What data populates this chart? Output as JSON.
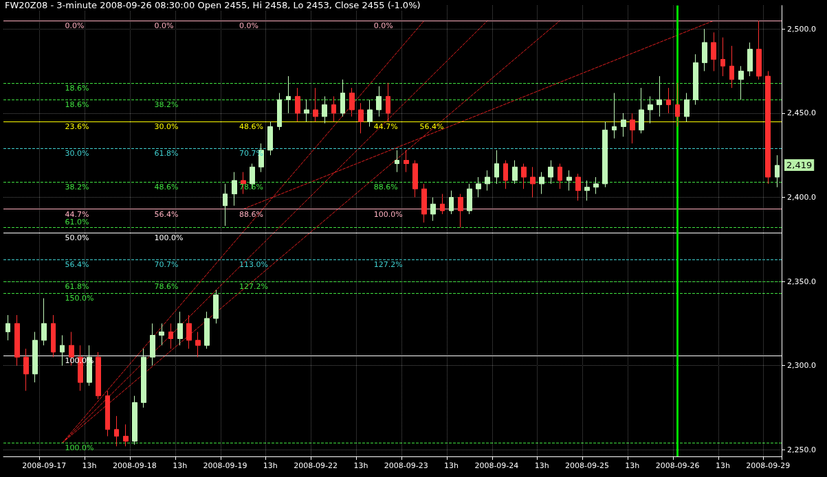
{
  "chart_data": {
    "type": "candlestick",
    "title": "FW20Z08 - 3-minute 2008-09-26 08:30:00 Open 2455, Hi 2458, Lo 2453, Close 2455 (-1.0%)",
    "categories": [
      null,
      null,
      null,
      null,
      "2008-09-17",
      null,
      null,
      null,
      null,
      "13h",
      null,
      null,
      null,
      null,
      "2008-09-18",
      null,
      null,
      null,
      null,
      "13h",
      null,
      null,
      null,
      null,
      "2008-09-19",
      null,
      null,
      null,
      null,
      "13h",
      null,
      null,
      null,
      null,
      "2008-09-22",
      null,
      null,
      null,
      null,
      "13h",
      null,
      null,
      null,
      null,
      "2008-09-23",
      null,
      null,
      null,
      null,
      "13h",
      null,
      null,
      null,
      null,
      "2008-09-24",
      null,
      null,
      null,
      null,
      "13h",
      null,
      null,
      null,
      null,
      "2008-09-25",
      null,
      null,
      null,
      null,
      "13h",
      null,
      null,
      null,
      null,
      "2008-09-26",
      null,
      null,
      null,
      null,
      "13h",
      null,
      null,
      null,
      null,
      "2008-09-29",
      null
    ],
    "ohlc": [
      [
        2320,
        2330,
        2315,
        2325
      ],
      [
        2325,
        2330,
        2300,
        2305
      ],
      [
        2305,
        2310,
        2285,
        2295
      ],
      [
        2295,
        2320,
        2290,
        2315
      ],
      [
        2315,
        2340,
        2312,
        2325
      ],
      [
        2325,
        2330,
        2305,
        2308
      ],
      [
        2308,
        2318,
        2300,
        2312
      ],
      [
        2312,
        2320,
        2300,
        2305
      ],
      [
        2305,
        2312,
        2285,
        2290
      ],
      [
        2290,
        2312,
        2288,
        2305
      ],
      [
        2305,
        2308,
        2280,
        2282
      ],
      [
        2282,
        2285,
        2258,
        2262
      ],
      [
        2262,
        2270,
        2252,
        2258
      ],
      [
        2258,
        2265,
        2252,
        2255
      ],
      [
        2255,
        2282,
        2253,
        2278
      ],
      [
        2278,
        2310,
        2275,
        2305
      ],
      [
        2305,
        2325,
        2300,
        2318
      ],
      [
        2318,
        2325,
        2312,
        2320
      ],
      [
        2320,
        2325,
        2310,
        2316
      ],
      [
        2316,
        2332,
        2312,
        2325
      ],
      [
        2325,
        2330,
        2310,
        2315
      ],
      [
        2315,
        2320,
        2305,
        2312
      ],
      [
        2312,
        2332,
        2310,
        2328
      ],
      [
        2328,
        2345,
        2325,
        2342
      ],
      [
        2395,
        2408,
        2383,
        2402
      ],
      [
        2402,
        2415,
        2395,
        2410
      ],
      [
        2410,
        2415,
        2402,
        2408
      ],
      [
        2408,
        2420,
        2405,
        2418
      ],
      [
        2418,
        2432,
        2415,
        2428
      ],
      [
        2428,
        2445,
        2425,
        2442
      ],
      [
        2442,
        2462,
        2440,
        2458
      ],
      [
        2458,
        2472,
        2450,
        2460
      ],
      [
        2460,
        2465,
        2445,
        2450
      ],
      [
        2450,
        2458,
        2445,
        2452
      ],
      [
        2452,
        2465,
        2445,
        2448
      ],
      [
        2448,
        2460,
        2444,
        2455
      ],
      [
        2455,
        2460,
        2445,
        2450
      ],
      [
        2450,
        2470,
        2448,
        2462
      ],
      [
        2462,
        2465,
        2448,
        2452
      ],
      [
        2452,
        2456,
        2438,
        2445
      ],
      [
        2445,
        2458,
        2442,
        2452
      ],
      [
        2452,
        2466,
        2448,
        2460
      ],
      [
        2460,
        2468,
        2445,
        2450
      ],
      [
        2420,
        2428,
        2415,
        2422
      ],
      [
        2422,
        2428,
        2415,
        2420
      ],
      [
        2420,
        2422,
        2400,
        2405
      ],
      [
        2405,
        2408,
        2385,
        2390
      ],
      [
        2390,
        2400,
        2386,
        2396
      ],
      [
        2396,
        2402,
        2390,
        2392
      ],
      [
        2392,
        2404,
        2390,
        2400
      ],
      [
        2400,
        2402,
        2382,
        2392
      ],
      [
        2392,
        2408,
        2390,
        2405
      ],
      [
        2405,
        2412,
        2400,
        2408
      ],
      [
        2408,
        2416,
        2404,
        2412
      ],
      [
        2412,
        2428,
        2408,
        2420
      ],
      [
        2420,
        2422,
        2405,
        2410
      ],
      [
        2410,
        2422,
        2408,
        2418
      ],
      [
        2418,
        2420,
        2405,
        2412
      ],
      [
        2412,
        2418,
        2400,
        2408
      ],
      [
        2408,
        2415,
        2402,
        2412
      ],
      [
        2412,
        2422,
        2408,
        2418
      ],
      [
        2418,
        2420,
        2405,
        2410
      ],
      [
        2410,
        2416,
        2404,
        2412
      ],
      [
        2412,
        2414,
        2398,
        2404
      ],
      [
        2404,
        2410,
        2398,
        2406
      ],
      [
        2406,
        2412,
        2402,
        2408
      ],
      [
        2408,
        2445,
        2406,
        2440
      ],
      [
        2440,
        2462,
        2435,
        2442
      ],
      [
        2442,
        2450,
        2436,
        2446
      ],
      [
        2446,
        2450,
        2432,
        2440
      ],
      [
        2440,
        2465,
        2438,
        2452
      ],
      [
        2452,
        2460,
        2444,
        2455
      ],
      [
        2455,
        2472,
        2448,
        2458
      ],
      [
        2458,
        2465,
        2450,
        2455
      ],
      [
        2455,
        2468,
        2442,
        2448
      ],
      [
        2448,
        2462,
        2445,
        2458
      ],
      [
        2458,
        2485,
        2455,
        2480
      ],
      [
        2480,
        2500,
        2475,
        2492
      ],
      [
        2492,
        2498,
        2475,
        2482
      ],
      [
        2482,
        2495,
        2472,
        2478
      ],
      [
        2478,
        2490,
        2465,
        2470
      ],
      [
        2470,
        2478,
        2458,
        2475
      ],
      [
        2475,
        2492,
        2472,
        2488
      ],
      [
        2488,
        2505,
        2470,
        2472
      ],
      [
        2472,
        2475,
        2408,
        2412
      ],
      [
        2412,
        2425,
        2406,
        2419
      ]
    ],
    "colors": [
      "#c0f8b8",
      "#ff3030",
      "#ff3030",
      "#c0f8b8",
      "#c0f8b8",
      "#ff3030",
      "#c0f8b8",
      "#ff3030",
      "#ff3030",
      "#c0f8b8",
      "#ff3030",
      "#ff3030",
      "#ff3030",
      "#ff3030",
      "#c0f8b8",
      "#c0f8b8",
      "#c0f8b8",
      "#c0f8b8",
      "#ff3030",
      "#c0f8b8",
      "#ff3030",
      "#ff3030",
      "#c0f8b8",
      "#c0f8b8",
      "#c0f8b8",
      "#c0f8b8",
      "#ff3030",
      "#c0f8b8",
      "#c0f8b8",
      "#c0f8b8",
      "#c0f8b8",
      "#c0f8b8",
      "#ff3030",
      "#c0f8b8",
      "#ff3030",
      "#c0f8b8",
      "#ff3030",
      "#c0f8b8",
      "#ff3030",
      "#ff3030",
      "#c0f8b8",
      "#c0f8b8",
      "#ff3030",
      "#c0f8b8",
      "#ff3030",
      "#ff3030",
      "#ff3030",
      "#c0f8b8",
      "#ff3030",
      "#c0f8b8",
      "#ff3030",
      "#c0f8b8",
      "#c0f8b8",
      "#c0f8b8",
      "#c0f8b8",
      "#ff3030",
      "#c0f8b8",
      "#ff3030",
      "#ff3030",
      "#c0f8b8",
      "#c0f8b8",
      "#ff3030",
      "#c0f8b8",
      "#ff3030",
      "#c0f8b8",
      "#c0f8b8",
      "#c0f8b8",
      "#c0f8b8",
      "#c0f8b8",
      "#ff3030",
      "#c0f8b8",
      "#c0f8b8",
      "#c0f8b8",
      "#ff3030",
      "#ff3030",
      "#c0f8b8",
      "#c0f8b8",
      "#c0f8b8",
      "#ff3030",
      "#ff3030",
      "#ff3030",
      "#c0f8b8",
      "#c0f8b8",
      "#ff3030",
      "#ff3030",
      "#c0f8b8"
    ],
    "series": [
      {
        "type": "line",
        "color": "#e02020",
        "line_style": "dashed",
        "values": [
          null,
          null,
          null,
          null,
          null,
          null,
          2254,
          null,
          null,
          null,
          null,
          null,
          null,
          null,
          null,
          null,
          null,
          null,
          null,
          null,
          null,
          null,
          null,
          null,
          null,
          null,
          null,
          null,
          null,
          null,
          null,
          null,
          null,
          null,
          null,
          null,
          null,
          null,
          null,
          null,
          null,
          null,
          null,
          null,
          null,
          null,
          2505,
          null,
          null,
          null,
          null,
          null,
          null,
          null,
          null,
          null,
          null,
          null,
          null,
          null,
          null,
          null,
          null,
          null,
          null,
          null,
          null,
          null,
          null,
          null,
          null,
          null,
          null,
          null,
          null,
          null,
          null,
          null,
          null,
          null,
          null,
          null,
          null,
          null,
          null,
          null
        ]
      },
      {
        "type": "line",
        "color": "#e02020",
        "line_style": "dashed",
        "values": [
          null,
          null,
          null,
          null,
          null,
          null,
          2254,
          null,
          null,
          null,
          null,
          null,
          null,
          null,
          null,
          null,
          null,
          null,
          null,
          null,
          null,
          null,
          null,
          null,
          null,
          null,
          null,
          null,
          null,
          null,
          null,
          null,
          null,
          null,
          null,
          null,
          null,
          null,
          null,
          null,
          null,
          null,
          null,
          null,
          null,
          null,
          null,
          null,
          null,
          null,
          null,
          null,
          null,
          2505,
          null,
          null,
          null,
          null,
          null,
          null,
          null,
          null,
          null,
          null,
          null,
          null,
          null,
          null,
          null,
          null,
          null,
          null,
          null,
          null,
          null,
          null,
          null,
          null,
          null,
          null,
          null,
          null,
          null,
          null,
          null,
          null
        ]
      },
      {
        "type": "line",
        "color": "#e02020",
        "line_style": "dashed",
        "values": [
          null,
          null,
          null,
          null,
          null,
          null,
          2254,
          null,
          null,
          null,
          null,
          null,
          null,
          null,
          null,
          null,
          null,
          null,
          null,
          null,
          null,
          null,
          null,
          null,
          null,
          null,
          null,
          null,
          null,
          null,
          null,
          null,
          null,
          null,
          null,
          null,
          null,
          null,
          null,
          null,
          null,
          null,
          null,
          null,
          null,
          null,
          null,
          null,
          null,
          null,
          null,
          null,
          null,
          null,
          null,
          null,
          null,
          null,
          null,
          null,
          null,
          2505,
          null,
          null,
          null,
          null,
          null,
          null,
          null,
          null,
          null,
          null,
          null,
          null,
          null,
          null,
          null,
          null,
          null,
          null,
          null,
          null,
          null,
          null,
          null,
          null
        ]
      },
      {
        "type": "line",
        "color": "#e02020",
        "line_style": "dashed",
        "values": [
          null,
          null,
          null,
          null,
          null,
          null,
          null,
          null,
          null,
          null,
          null,
          null,
          null,
          null,
          null,
          null,
          null,
          null,
          null,
          null,
          null,
          null,
          null,
          null,
          null,
          null,
          2393,
          null,
          null,
          null,
          null,
          null,
          null,
          null,
          null,
          null,
          null,
          null,
          null,
          null,
          null,
          null,
          null,
          null,
          null,
          null,
          null,
          null,
          null,
          null,
          null,
          null,
          null,
          null,
          null,
          null,
          null,
          null,
          null,
          null,
          null,
          null,
          null,
          null,
          null,
          null,
          null,
          null,
          null,
          null,
          null,
          null,
          null,
          null,
          null,
          null,
          null,
          null,
          2505,
          null,
          null,
          null,
          null,
          null,
          null,
          null
        ]
      }
    ],
    "marker": "none",
    "ylim": [
      2246,
      2514
    ],
    "yticks": [
      {
        "value": 2250,
        "label": "2,250.0"
      },
      {
        "value": 2300,
        "label": "2,300.0"
      },
      {
        "value": 2350,
        "label": "2,350.0"
      },
      {
        "value": 2400,
        "label": "2,400.0"
      },
      {
        "value": 2450,
        "label": "2,450.0"
      },
      {
        "value": 2500,
        "label": "2,500.0"
      }
    ],
    "grid": true,
    "ref_lines": [
      {
        "axis": "y",
        "value": 2505,
        "color": "#ffb0c0",
        "line_style": "solid"
      },
      {
        "axis": "y",
        "value": 2468,
        "color": "#40e040",
        "line_style": "dashed"
      },
      {
        "axis": "y",
        "value": 2458,
        "color": "#40e040",
        "line_style": "dashed"
      },
      {
        "axis": "y",
        "value": 2445,
        "color": "#ffff00",
        "line_style": "solid"
      },
      {
        "axis": "y",
        "value": 2429,
        "color": "#40d0d0",
        "line_style": "dashed"
      },
      {
        "axis": "y",
        "value": 2409,
        "color": "#40e040",
        "line_style": "dashed"
      },
      {
        "axis": "y",
        "value": 2393,
        "color": "#ffb0c0",
        "line_style": "solid"
      },
      {
        "axis": "y",
        "value": 2382,
        "color": "#40e040",
        "line_style": "dashed"
      },
      {
        "axis": "y",
        "value": 2379,
        "color": "#ffffff",
        "line_style": "solid"
      },
      {
        "axis": "y",
        "value": 2363,
        "color": "#40d0d0",
        "line_style": "dashed"
      },
      {
        "axis": "y",
        "value": 2350,
        "color": "#40e040",
        "line_style": "dashed"
      },
      {
        "axis": "y",
        "value": 2343,
        "color": "#40e040",
        "line_style": "dashed"
      },
      {
        "axis": "y",
        "value": 2306,
        "color": "#ffffff",
        "line_style": "solid"
      },
      {
        "axis": "y",
        "value": 2254,
        "color": "#40e040",
        "line_style": "dashed"
      },
      {
        "axis": "x",
        "value": "2008-09-26",
        "color": "#00e000",
        "line_style": "solid"
      }
    ],
    "annotations": [
      {
        "text": "0.0%",
        "y": 2505
      },
      {
        "text": "0.0%",
        "y": 2505
      },
      {
        "text": "0.0%",
        "y": 2505
      },
      {
        "text": "0.0%",
        "y": 2505
      },
      {
        "text": "18.6%",
        "y": 2468
      },
      {
        "text": "18.6%",
        "y": 2458
      },
      {
        "text": "38.2%",
        "y": 2458
      },
      {
        "text": "23.6%",
        "y": 2445
      },
      {
        "text": "30.0%",
        "y": 2445
      },
      {
        "text": "48.6%",
        "y": 2445
      },
      {
        "text": "44.7%",
        "y": 2445
      },
      {
        "text": "56.4%",
        "y": 2445
      },
      {
        "text": "30.0%",
        "y": 2429
      },
      {
        "text": "61.8%",
        "y": 2429
      },
      {
        "text": "70.7%",
        "y": 2429
      },
      {
        "text": "38.2%",
        "y": 2409
      },
      {
        "text": "48.6%",
        "y": 2409
      },
      {
        "text": "78.6%",
        "y": 2409
      },
      {
        "text": "88.6%",
        "y": 2409
      },
      {
        "text": "44.7%",
        "y": 2393
      },
      {
        "text": "56.4%",
        "y": 2393
      },
      {
        "text": "88.6%",
        "y": 2393
      },
      {
        "text": "100.0%",
        "y": 2393
      },
      {
        "text": "61.0%",
        "y": 2382
      },
      {
        "text": "50.0%",
        "y": 2379
      },
      {
        "text": "100.0%",
        "y": 2379
      },
      {
        "text": "56.4%",
        "y": 2363
      },
      {
        "text": "70.7%",
        "y": 2363
      },
      {
        "text": "113.0%",
        "y": 2363
      },
      {
        "text": "127.2%",
        "y": 2363
      },
      {
        "text": "61.8%",
        "y": 2350
      },
      {
        "text": "78.6%",
        "y": 2350
      },
      {
        "text": "127.2%",
        "y": 2350
      },
      {
        "text": "150.0%",
        "y": 2343
      },
      {
        "text": "100.0%",
        "y": 2306
      },
      {
        "text": "100.0%",
        "y": 2254
      },
      "2,419"
    ]
  }
}
